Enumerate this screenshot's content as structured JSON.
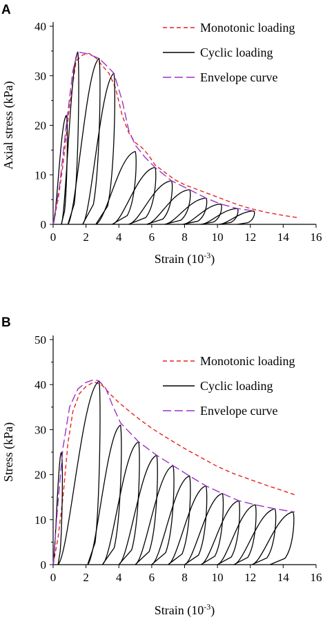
{
  "colors": {
    "monotonic": "#e8211d",
    "cyclic": "#000000",
    "envelope": "#9a32c8",
    "axis": "#000000"
  },
  "chart_data": [
    {
      "type": "line",
      "panel": "A",
      "xlabel": "Strain (10",
      "xlabel_sup": "-3",
      "xlabel_close": ")",
      "ylabel": "Axial stress (kPa)",
      "xlim": [
        0,
        16
      ],
      "ylim": [
        0,
        40
      ],
      "xticks": [
        "0",
        "2",
        "4",
        "6",
        "8",
        "10",
        "12",
        "14",
        "16"
      ],
      "yticks": [
        "0",
        "10",
        "20",
        "30",
        "40"
      ],
      "grid": false,
      "legend_position": "top-right",
      "series": [
        {
          "name": "Monotonic loading",
          "style": "dashed",
          "color_key": "monotonic",
          "x": [
            0,
            0.3,
            0.6,
            1.0,
            1.4,
            1.8,
            2.2,
            2.6,
            3.0,
            3.4,
            3.8,
            4.2,
            4.6,
            5.0,
            5.4,
            5.8,
            6.2,
            6.8,
            7.4,
            8.0,
            8.8,
            9.6,
            10.4,
            11.2,
            12.0,
            13.0,
            14.0,
            15.0
          ],
          "y": [
            0,
            5,
            12,
            24,
            33,
            34.2,
            34.5,
            33.6,
            32,
            30.5,
            27.5,
            22,
            18.5,
            16.5,
            15.5,
            14,
            12,
            10.5,
            9,
            8,
            7,
            6,
            5,
            4,
            3.2,
            2.4,
            1.8,
            1.3
          ]
        },
        {
          "name": "Cyclic loading",
          "style": "solid",
          "color_key": "cyclic",
          "cycles": [
            {
              "start": 0.0,
              "peak": [
                0.8,
                22.0
              ],
              "end": 0.5
            },
            {
              "start": 0.5,
              "peak": [
                1.5,
                34.8
              ],
              "end": 0.9
            },
            {
              "start": 0.9,
              "peak": [
                2.8,
                33.5
              ],
              "end": 1.8
            },
            {
              "start": 1.8,
              "peak": [
                3.7,
                30.5
              ],
              "end": 2.6
            },
            {
              "start": 2.6,
              "peak": [
                5.0,
                14.7
              ],
              "end": 3.6
            },
            {
              "start": 3.6,
              "peak": [
                6.2,
                11.5
              ],
              "end": 4.6
            },
            {
              "start": 4.6,
              "peak": [
                7.2,
                8.8
              ],
              "end": 5.7
            },
            {
              "start": 5.7,
              "peak": [
                8.3,
                7.0
              ],
              "end": 6.8
            },
            {
              "start": 6.8,
              "peak": [
                9.3,
                5.3
              ],
              "end": 7.9
            },
            {
              "start": 7.9,
              "peak": [
                10.2,
                4.1
              ],
              "end": 9.0
            },
            {
              "start": 9.0,
              "peak": [
                11.2,
                3.2
              ],
              "end": 10.1
            },
            {
              "start": 10.1,
              "peak": [
                12.2,
                2.7
              ],
              "end": 11.2
            }
          ]
        },
        {
          "name": "Envelope curve",
          "style": "longdash",
          "color_key": "envelope",
          "x": [
            0,
            0.4,
            0.8,
            1.2,
            1.5,
            2.0,
            2.5,
            2.8,
            3.2,
            3.7,
            4.2,
            4.6,
            5.0,
            5.6,
            6.2,
            7.2,
            8.3,
            9.3,
            10.2,
            11.2,
            12.2
          ],
          "y": [
            0,
            8,
            20,
            31,
            34.8,
            34.5,
            33.9,
            33.5,
            32.2,
            30.5,
            25,
            19,
            16,
            13.5,
            11.5,
            8.8,
            7.0,
            5.3,
            4.1,
            3.2,
            2.7
          ]
        }
      ]
    },
    {
      "type": "line",
      "panel": "B",
      "xlabel": "Strain (10",
      "xlabel_sup": "-3",
      "xlabel_close": ")",
      "ylabel": "Stress (kPa)",
      "xlim": [
        0,
        16
      ],
      "ylim": [
        0,
        50
      ],
      "xticks": [
        "0",
        "2",
        "4",
        "6",
        "8",
        "10",
        "12",
        "14",
        "16"
      ],
      "yticks": [
        "0",
        "10",
        "20",
        "30",
        "40",
        "50"
      ],
      "grid": false,
      "legend_position": "top-right",
      "series": [
        {
          "name": "Monotonic loading",
          "style": "dashed",
          "color_key": "monotonic",
          "x": [
            0,
            0.3,
            0.6,
            0.9,
            1.2,
            1.6,
            2.0,
            2.5,
            3.0,
            3.5,
            4.0,
            5.0,
            6.0,
            7.0,
            8.0,
            9.0,
            10.0,
            11.0,
            12.0,
            13.0,
            14.0,
            14.8
          ],
          "y": [
            0,
            6,
            15,
            27,
            34,
            38,
            39.6,
            40.6,
            39.8,
            37.8,
            36,
            33,
            30.3,
            28,
            25.8,
            23.8,
            21.8,
            20.2,
            18.9,
            17.6,
            16.4,
            15.4
          ]
        },
        {
          "name": "Cyclic loading",
          "style": "solid",
          "color_key": "cyclic",
          "cycles": [
            {
              "start": 0.0,
              "peak": [
                0.5,
                25.0
              ],
              "end": 0.3
            },
            {
              "start": 0.3,
              "peak": [
                2.8,
                40.8
              ],
              "end": 2.1
            },
            {
              "start": 2.1,
              "peak": [
                4.1,
                31.0
              ],
              "end": 3.0
            },
            {
              "start": 3.0,
              "peak": [
                5.2,
                27.3
              ],
              "end": 4.0
            },
            {
              "start": 4.0,
              "peak": [
                6.3,
                24.3
              ],
              "end": 5.0
            },
            {
              "start": 5.0,
              "peak": [
                7.3,
                22.0
              ],
              "end": 6.0
            },
            {
              "start": 6.0,
              "peak": [
                8.3,
                19.7
              ],
              "end": 7.0
            },
            {
              "start": 7.0,
              "peak": [
                9.3,
                17.5
              ],
              "end": 8.0
            },
            {
              "start": 8.0,
              "peak": [
                10.3,
                15.8
              ],
              "end": 9.0
            },
            {
              "start": 9.0,
              "peak": [
                11.3,
                14.2
              ],
              "end": 10.0
            },
            {
              "start": 10.0,
              "peak": [
                12.3,
                13.3
              ],
              "end": 11.0
            },
            {
              "start": 11.0,
              "peak": [
                13.5,
                12.4
              ],
              "end": 12.1
            },
            {
              "start": 12.1,
              "peak": [
                14.6,
                11.7
              ],
              "end": 13.2
            }
          ]
        },
        {
          "name": "Envelope curve",
          "style": "longdash",
          "color_key": "envelope",
          "x": [
            0,
            0.3,
            0.6,
            1.0,
            1.5,
            2.0,
            2.5,
            2.8,
            3.2,
            3.6,
            4.1,
            5.2,
            6.3,
            7.3,
            8.3,
            9.3,
            10.3,
            11.3,
            12.3,
            13.5,
            14.7
          ],
          "y": [
            0,
            14,
            26,
            35,
            39,
            40.5,
            41.1,
            40.8,
            39.2,
            35.5,
            31.5,
            27.3,
            24.3,
            22.0,
            19.7,
            17.5,
            15.8,
            14.2,
            13.3,
            12.4,
            11.7
          ]
        }
      ]
    }
  ]
}
